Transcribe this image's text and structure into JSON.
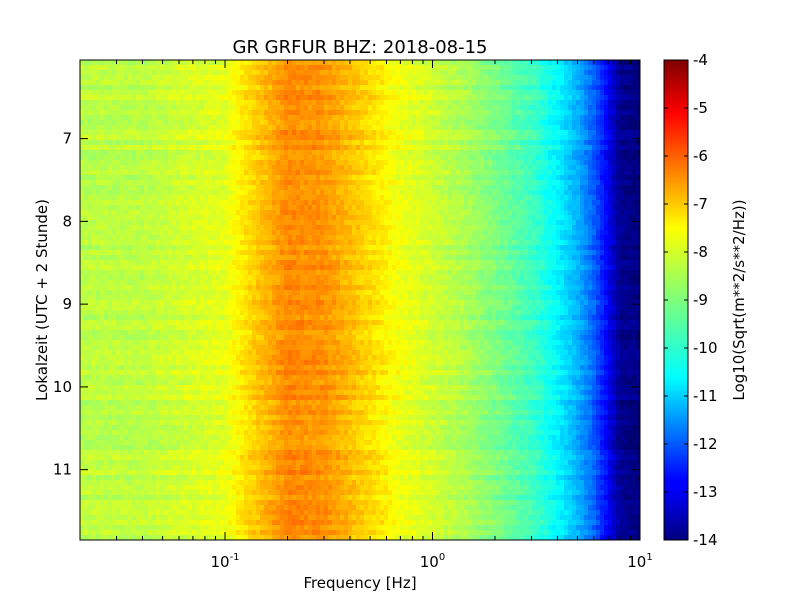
{
  "chart_data": {
    "type": "heatmap",
    "title": "GR GRFUR BHZ: 2018-08-15",
    "xlabel": "Frequency [Hz]",
    "ylabel": "Lokalzeit (UTC + 2 Stunde)",
    "x_scale": "log",
    "xlim": [
      0.02,
      10
    ],
    "ylim": [
      6.05,
      11.85
    ],
    "y_inverted": true,
    "x_ticks": [
      {
        "base": "10",
        "exp": "-1",
        "value": 0.1
      },
      {
        "base": "10",
        "exp": "0",
        "value": 1
      },
      {
        "base": "10",
        "exp": "1",
        "value": 10
      }
    ],
    "y_ticks": [
      "7",
      "8",
      "9",
      "10",
      "11"
    ],
    "colorbar": {
      "label": "Log10(Sqrt(m**2/s**2/Hz))",
      "range": [
        -14,
        -4
      ],
      "ticks": [
        "-4",
        "-5",
        "-6",
        "-7",
        "-8",
        "-9",
        "-10",
        "-11",
        "-12",
        "-13",
        "-14"
      ],
      "colormap": "jet"
    },
    "spectrum_profile": {
      "frequency_hz": [
        0.02,
        0.04,
        0.06,
        0.1,
        0.13,
        0.2,
        0.3,
        0.5,
        0.7,
        1.0,
        1.5,
        2.0,
        3.0,
        4.0,
        5.0,
        6.0,
        7.0,
        8.0,
        10.0
      ],
      "value": [
        -8.4,
        -8.4,
        -8.2,
        -8.0,
        -7.4,
        -6.6,
        -6.7,
        -7.4,
        -7.9,
        -8.2,
        -8.6,
        -9.0,
        -9.6,
        -10.3,
        -11.0,
        -11.8,
        -12.8,
        -13.8,
        -14.0
      ]
    }
  }
}
